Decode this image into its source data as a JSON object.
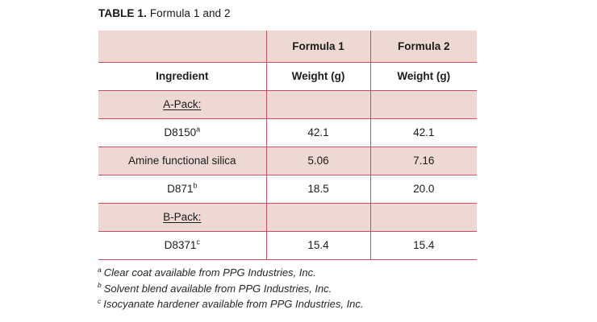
{
  "title": {
    "label": "TABLE 1.",
    "rest": "Formula 1 and 2"
  },
  "colors": {
    "row_fill_pink": "#eed8d4",
    "grid_line": "#c15163",
    "text": "#1c1c1c",
    "page_background": "#ffffff"
  },
  "table": {
    "rows": [
      {
        "style": "pink bold",
        "cells": [
          "",
          "Formula 1",
          "Formula 2"
        ]
      },
      {
        "style": "white bold",
        "cells": [
          "Ingredient",
          "Weight (g)",
          "Weight (g)"
        ]
      },
      {
        "style": "pink pack",
        "cells": [
          "A-Pack:",
          "",
          ""
        ]
      },
      {
        "style": "white",
        "cells": [
          "D8150",
          "42.1",
          "42.1"
        ],
        "sup": "a"
      },
      {
        "style": "pink",
        "cells": [
          "Amine functional silica",
          "5.06",
          "7.16"
        ]
      },
      {
        "style": "white",
        "cells": [
          "D871",
          "18.5",
          "20.0"
        ],
        "sup": "b"
      },
      {
        "style": "pink pack",
        "cells": [
          "B-Pack:",
          "",
          ""
        ]
      },
      {
        "style": "white",
        "cells": [
          "D8371",
          "15.4",
          "15.4"
        ],
        "sup": "c"
      }
    ]
  },
  "footnotes": [
    {
      "sup": "a",
      "text": "Clear coat available from PPG Industries, Inc."
    },
    {
      "sup": "b",
      "text": "Solvent blend available from PPG Industries, Inc."
    },
    {
      "sup": "c",
      "text": "Isocyanate hardener available from PPG Industries, Inc."
    }
  ]
}
